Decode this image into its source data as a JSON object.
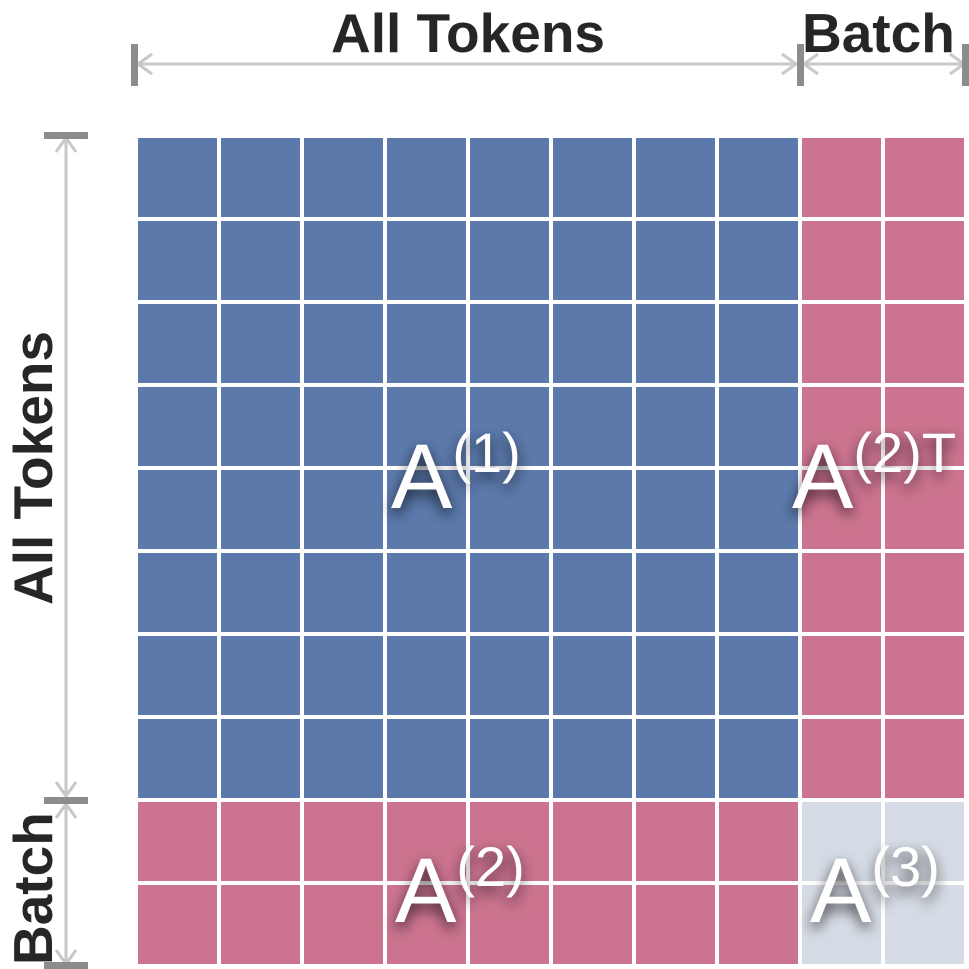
{
  "axes": {
    "top_all_tokens": "All Tokens",
    "top_batch": "Batch",
    "left_all_tokens": "All Tokens",
    "left_batch": "Batch"
  },
  "blocks": {
    "a1": {
      "base": "A",
      "sup": "(1)"
    },
    "a2t": {
      "base": "A",
      "sup": "(2)T"
    },
    "a2": {
      "base": "A",
      "sup": "(2)"
    },
    "a3": {
      "base": "A",
      "sup": "(3)"
    }
  },
  "colors": {
    "a1": "#5b79ab",
    "a2": "#cc748f",
    "a3": "#d6dce5",
    "grid_line": "#ffffff",
    "dimension_line": "#c8c8c8",
    "end_bar": "#8c8c8c",
    "axis_text": "#262626"
  },
  "grid": {
    "token_cells": 8,
    "batch_cells": 2
  }
}
